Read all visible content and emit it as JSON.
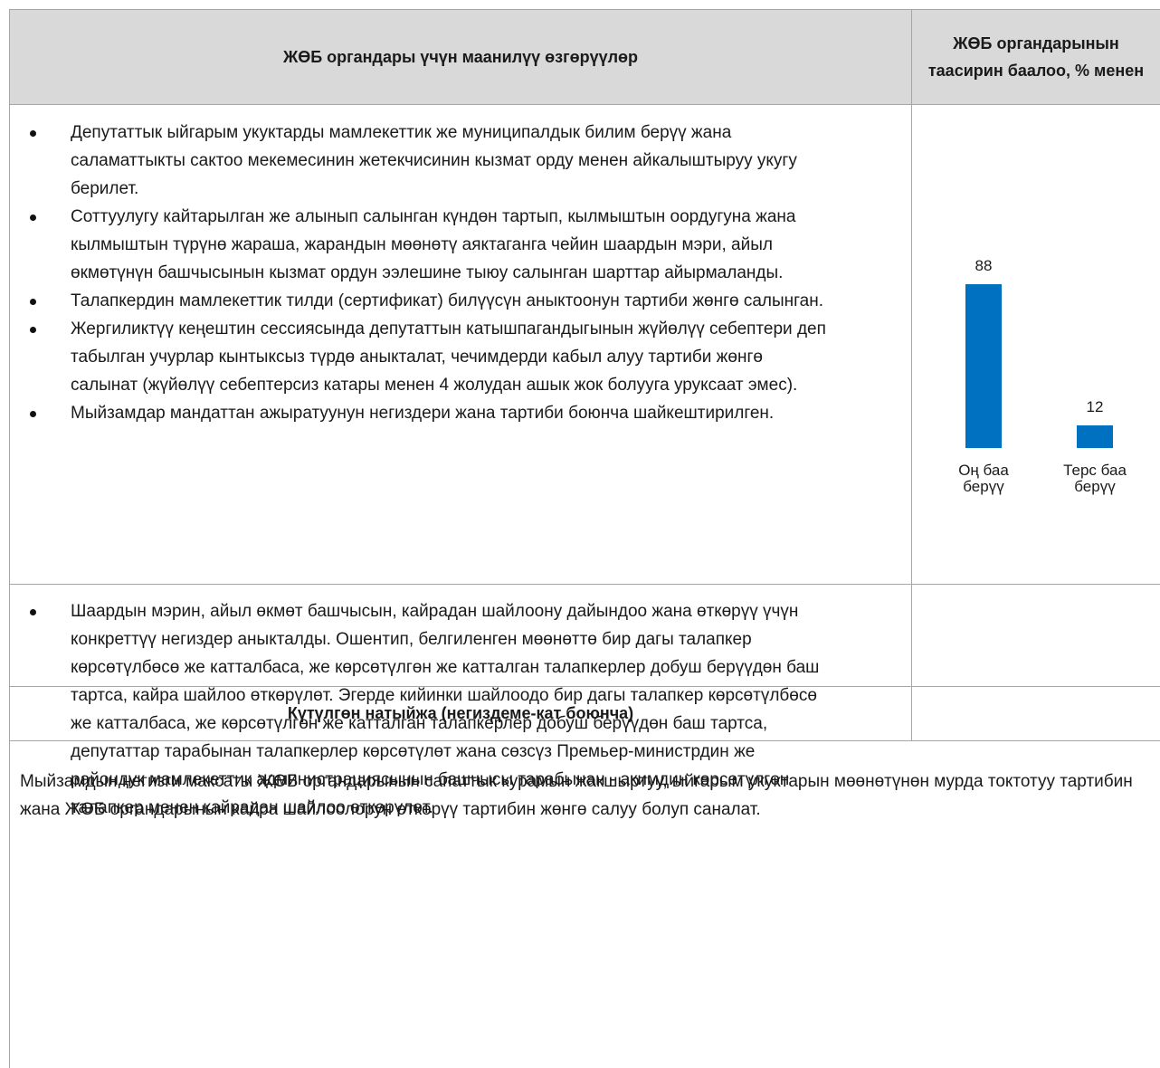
{
  "table": {
    "header": [
      "ЖӨБ органдары үчүн маанилүү өзгөрүүлөр",
      "ЖӨБ органдарынын таасирин баалоо, % менен"
    ],
    "row1_items": [
      "Депутаттык ыйгарым укуктарды мамлекеттик же муниципалдык билим берүү жана саламаттыкты сактоо мекемесинин жетекчисинин кызмат орду менен айкалыштыруу укугу берилет.",
      "Соттуулугу кайтарылган же алынып салынган күндөн тартып, кылмыштын оордугуна жана кылмыштын түрүнө жараша, жарандын мөөнөтү аяктаганга чейин шаардын мэри, айыл өкмөтүнүн башчысынын кызмат ордун ээлешине тыюу салынган шарттар айырмаланды.",
      "Талапкердин мамлекеттик тилди (сертификат) билүүсүн аныктоонун тартиби жөнгө салынган.",
      "Жергиликтүү кеңештин сессиясында депутаттын катышпагандыгынын жүйөлүү себептери деп табылган учурлар кынтыксыз түрдө аныкталат, чечимдерди кабыл алуу тартиби жөнгө салынат (жүйөлүү себептерсиз катары менен 4 жолудан ашык жок болууга уруксаат эмес).",
      "Мыйзамдар мандаттан ажыратуунун негиздери жана тартиби боюнча шайкештирилген."
    ],
    "row2_items": [
      "Шаардын мэрин, айыл өкмөт башчысын, кайрадан  шайлоону дайындоо жана өткөрүү үчүн конкреттүү негиздер аныкталды. Ошентип, белгиленген мөөнөттө бир дагы талапкер көрсөтүлбөсө же катталбаса, же көрсөтүлгөн же катталган талапкерлер добуш берүүдөн баш тартса, кайра шайлоо өткөрүлөт. Эгерде кийинки шайлоодо бир дагы талапкер көрсөтүлбөсө же катталбаса, же көрсөтүлгөн же катталган талапкерлер добуш берүүдөн баш тартса, депутаттар тарабынан талапкерлер көрсөтүлөт жана сөзсүз Премьер-министрдин же райондук мамлекеттик администрациясынын башчысы тарабынан  - акимдин көрсөтүлгөн талапкер менен кайрадан шайлоо өткөрүлөт."
    ],
    "row3": "Күтүлгөн натыйжа (негиздеме-кат боюнча)",
    "row4": "Мыйзамдын негизги максаты ЖӨБ органдарынын сапаттык курамын жакшыртуу, ыйгарым укуктарын мөөнөтүнөн мурда токтотуу тартибин жана ЖӨБ органдарынын кайра шайлоолорун өткөрүү тартибин жөнгө салуу болуп саналат."
  },
  "chart_data": {
    "type": "bar",
    "categories": [
      "Оң баа берүү",
      "Терс баа берүү"
    ],
    "values": [
      88,
      12
    ],
    "color": "#0070c0"
  }
}
